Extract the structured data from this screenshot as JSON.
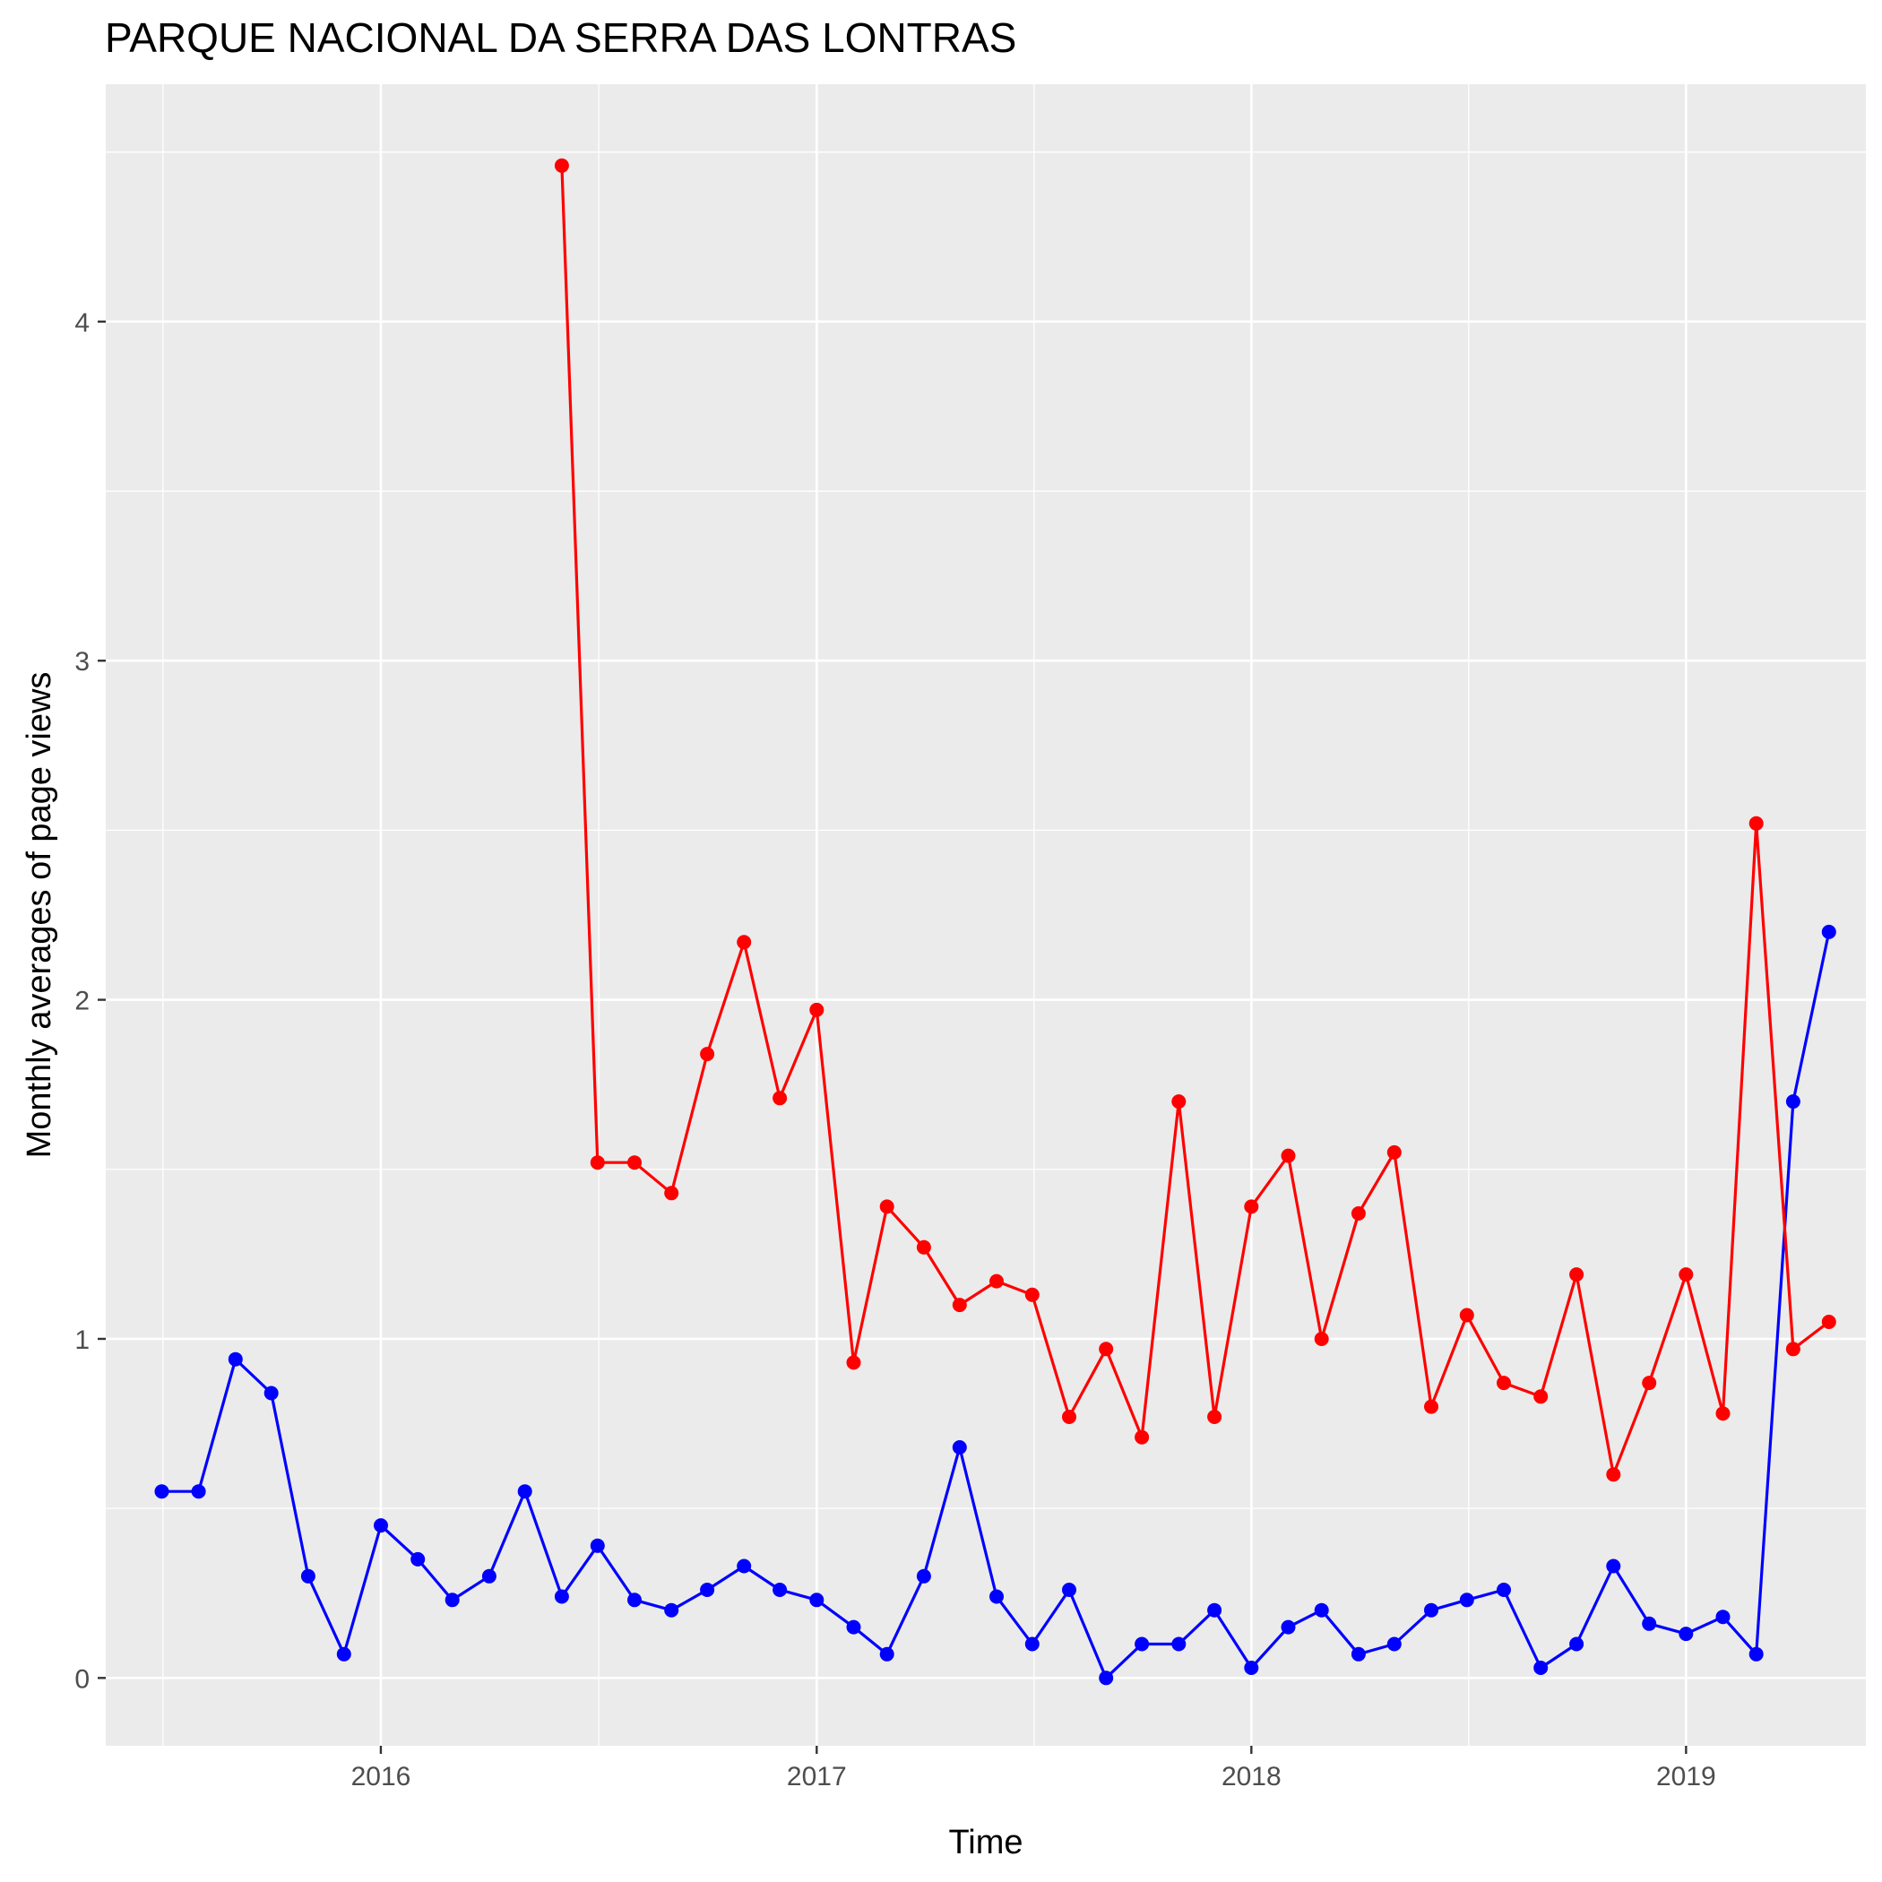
{
  "chart_data": {
    "type": "line",
    "title": "PARQUE NACIONAL DA SERRA DAS LONTRAS",
    "xlabel": "Time",
    "ylabel": "Monthly averages of page views",
    "xlim": [
      "2015-05-15",
      "2019-06-01"
    ],
    "ylim": [
      -0.2,
      4.7
    ],
    "x_ticks": [
      "2016-01-01",
      "2017-01-01",
      "2018-01-01",
      "2019-01-01"
    ],
    "x_tick_labels": [
      "2016",
      "2017",
      "2018",
      "2019"
    ],
    "y_ticks": [
      0,
      1,
      2,
      3,
      4
    ],
    "y_tick_labels": [
      "0",
      "1",
      "2",
      "3",
      "4"
    ],
    "grid": true,
    "legend": "none",
    "series": [
      {
        "color": "#0000ff",
        "x": [
          "2015-07",
          "2015-08",
          "2015-09",
          "2015-10",
          "2015-11",
          "2015-12",
          "2016-01",
          "2016-02",
          "2016-03",
          "2016-04",
          "2016-05",
          "2016-06",
          "2016-07",
          "2016-08",
          "2016-09",
          "2016-10",
          "2016-11",
          "2016-12",
          "2017-01",
          "2017-02",
          "2017-03",
          "2017-04",
          "2017-05",
          "2017-06",
          "2017-07",
          "2017-08",
          "2017-09",
          "2017-10",
          "2017-11",
          "2017-12",
          "2018-01",
          "2018-02",
          "2018-03",
          "2018-04",
          "2018-05",
          "2018-06",
          "2018-07",
          "2018-08",
          "2018-09",
          "2018-10",
          "2018-11",
          "2018-12",
          "2019-01",
          "2019-02",
          "2019-03",
          "2019-04",
          "2019-05"
        ],
        "values": [
          0.55,
          0.55,
          0.94,
          0.84,
          0.3,
          0.07,
          0.45,
          0.35,
          0.23,
          0.3,
          0.55,
          0.24,
          0.39,
          0.23,
          0.2,
          0.26,
          0.33,
          0.26,
          0.23,
          0.15,
          0.07,
          0.3,
          0.68,
          0.24,
          0.1,
          0.26,
          0.0,
          0.1,
          0.1,
          0.2,
          0.03,
          0.15,
          0.2,
          0.07,
          0.1,
          0.2,
          0.23,
          0.26,
          0.03,
          0.1,
          0.33,
          0.16,
          0.13,
          0.18,
          0.07,
          1.7,
          2.2
        ]
      },
      {
        "color": "#ff0000",
        "x": [
          "2016-06",
          "2016-07",
          "2016-08",
          "2016-09",
          "2016-10",
          "2016-11",
          "2016-12",
          "2017-01",
          "2017-02",
          "2017-03",
          "2017-04",
          "2017-05",
          "2017-06",
          "2017-07",
          "2017-08",
          "2017-09",
          "2017-10",
          "2017-11",
          "2017-12",
          "2018-01",
          "2018-02",
          "2018-03",
          "2018-04",
          "2018-05",
          "2018-06",
          "2018-07",
          "2018-08",
          "2018-09",
          "2018-10",
          "2018-11",
          "2018-12",
          "2019-01",
          "2019-02",
          "2019-03",
          "2019-04",
          "2019-05"
        ],
        "values": [
          4.46,
          1.52,
          1.52,
          1.43,
          1.84,
          2.17,
          1.71,
          1.97,
          0.93,
          1.39,
          1.27,
          1.1,
          1.17,
          1.13,
          0.77,
          0.97,
          0.71,
          1.7,
          0.77,
          1.39,
          1.54,
          1.0,
          1.37,
          1.55,
          0.8,
          1.07,
          0.87,
          0.83,
          1.19,
          0.6,
          0.87,
          1.19,
          0.78,
          2.52,
          0.97,
          1.05
        ]
      }
    ]
  }
}
